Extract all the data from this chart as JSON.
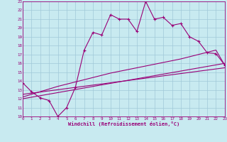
{
  "xlabel": "Windchill (Refroidissement éolien,°C)",
  "bg_color": "#c8eaf0",
  "grid_color": "#a0c8d8",
  "line_color": "#990077",
  "xmin": 0,
  "xmax": 23,
  "ymin": 10,
  "ymax": 23,
  "line1_x": [
    0,
    1,
    2,
    3,
    4,
    5,
    6,
    7,
    8,
    9,
    10,
    11,
    12,
    13,
    14,
    15,
    16,
    17,
    18,
    19,
    20,
    21,
    22,
    23
  ],
  "line1_y": [
    13.8,
    12.8,
    12.1,
    11.8,
    10.0,
    11.0,
    13.3,
    17.5,
    19.5,
    19.2,
    21.5,
    21.0,
    21.0,
    19.6,
    23.0,
    21.0,
    21.2,
    20.3,
    20.5,
    19.0,
    18.5,
    17.2,
    17.1,
    15.8
  ],
  "line2_x": [
    0,
    1,
    2,
    3,
    4,
    5,
    6,
    7,
    8,
    9,
    10,
    11,
    12,
    13,
    14,
    15,
    16,
    17,
    18,
    19,
    20,
    21,
    22,
    23
  ],
  "line2_y": [
    12.2,
    12.5,
    12.8,
    13.1,
    13.4,
    13.65,
    13.9,
    14.15,
    14.4,
    14.65,
    14.9,
    15.1,
    15.3,
    15.5,
    15.7,
    15.9,
    16.1,
    16.3,
    16.5,
    16.75,
    17.0,
    17.25,
    17.5,
    15.8
  ],
  "line3_x": [
    0,
    23
  ],
  "line3_y": [
    12.0,
    16.0
  ],
  "line4_x": [
    0,
    23
  ],
  "line4_y": [
    12.5,
    15.5
  ]
}
